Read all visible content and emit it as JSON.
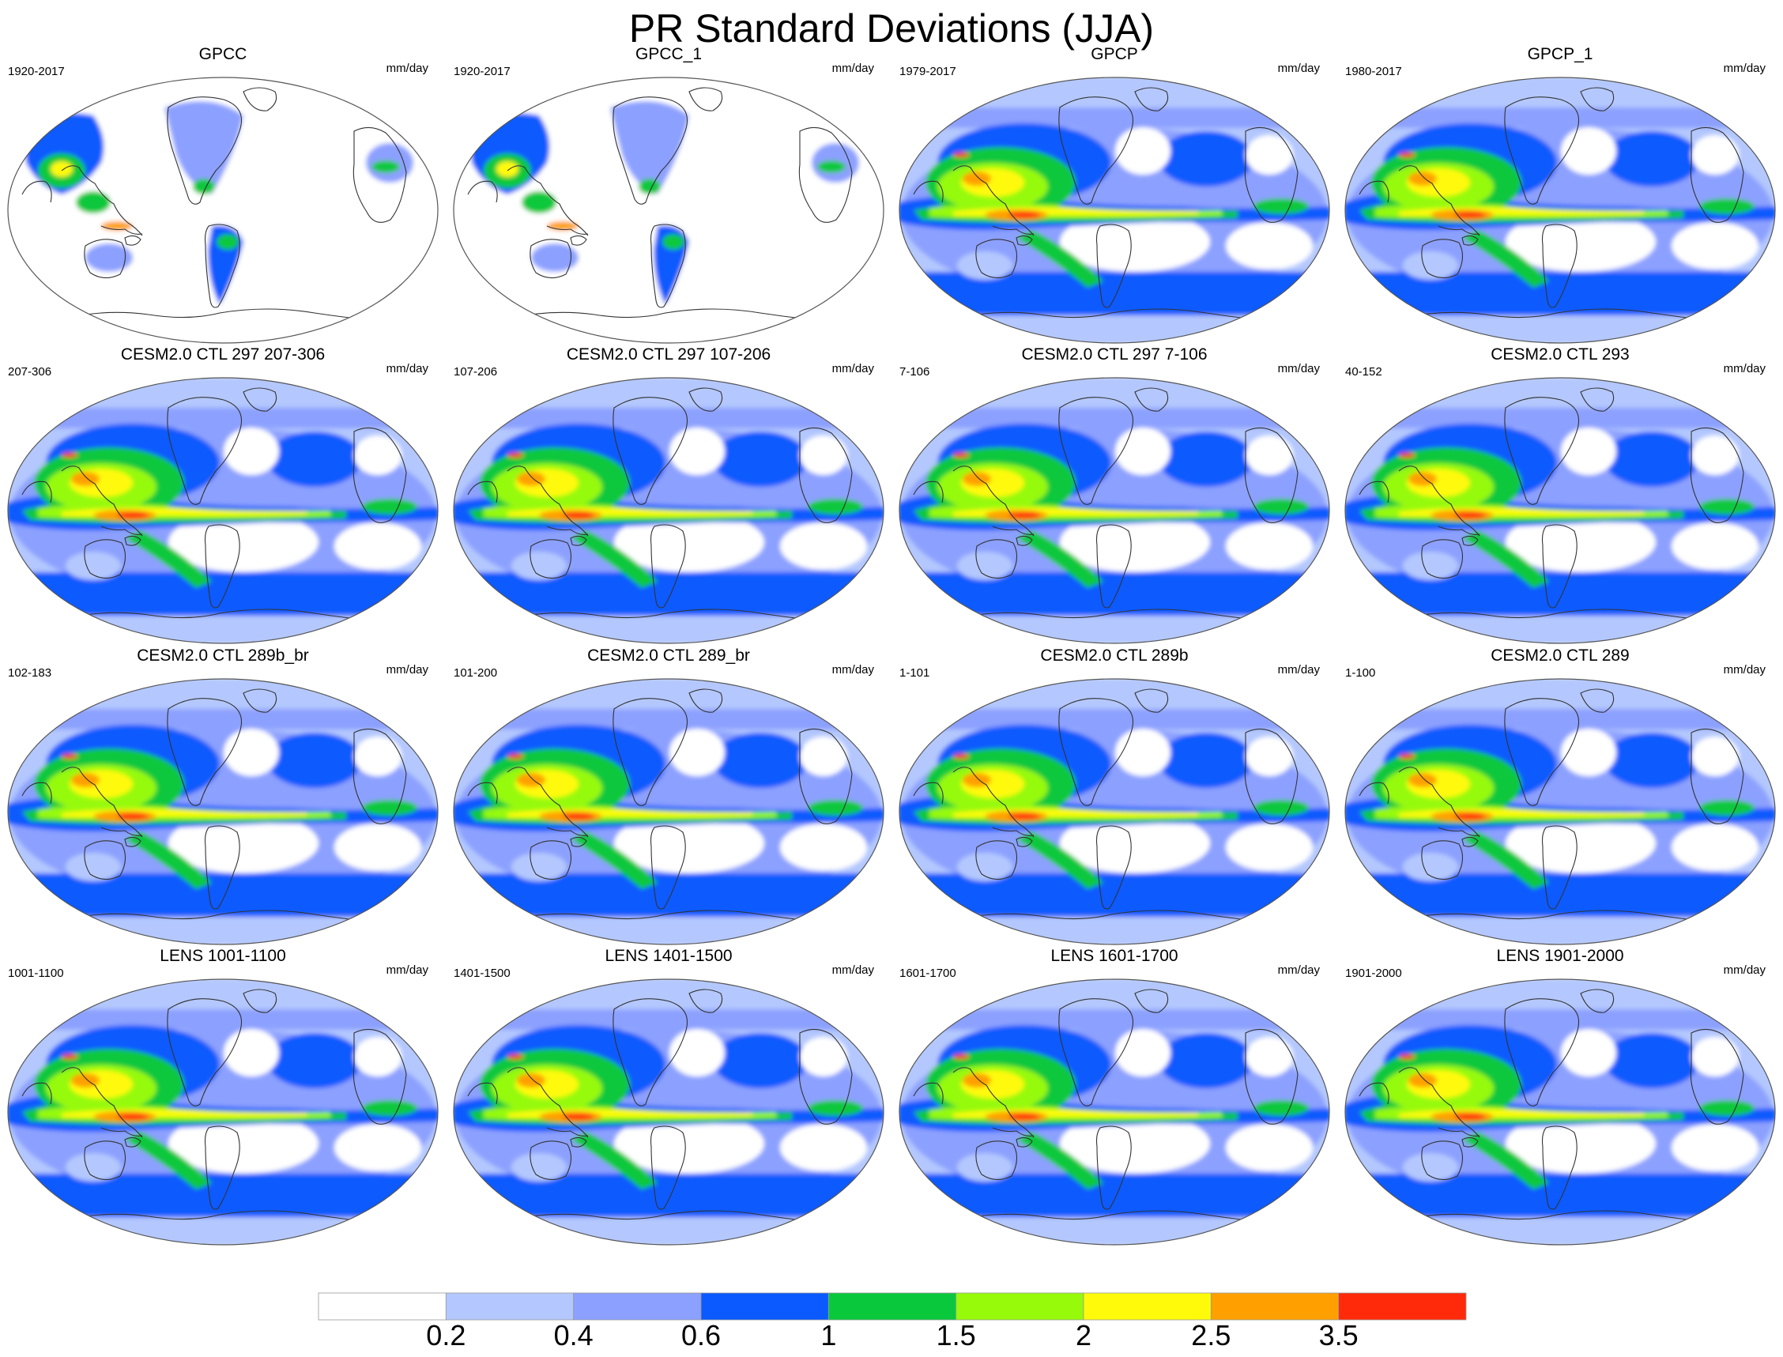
{
  "title": "PR Standard Deviations (JJA)",
  "units": "mm/day",
  "colorbar": {
    "labels": [
      "0.2",
      "0.4",
      "0.6",
      "1",
      "1.5",
      "2",
      "2.5",
      "3.5"
    ],
    "colors": [
      "#ffffff",
      "#b4c8ff",
      "#8ca0ff",
      "#0a5aff",
      "#0ac83c",
      "#96fa0a",
      "#fffa0a",
      "#ffa000",
      "#ff2a0a"
    ]
  },
  "panels": [
    {
      "title": "GPCC",
      "period": "1920-2017",
      "land_only": true
    },
    {
      "title": "GPCC_1",
      "period": "1920-2017",
      "land_only": true
    },
    {
      "title": "GPCP",
      "period": "1979-2017",
      "land_only": false
    },
    {
      "title": "GPCP_1",
      "period": "1980-2017",
      "land_only": false
    },
    {
      "title": "CESM2.0 CTL 297 207-306",
      "period": "207-306",
      "land_only": false
    },
    {
      "title": "CESM2.0 CTL 297 107-206",
      "period": "107-206",
      "land_only": false
    },
    {
      "title": "CESM2.0 CTL 297 7-106",
      "period": "7-106",
      "land_only": false
    },
    {
      "title": "CESM2.0 CTL 293",
      "period": "40-152",
      "land_only": false
    },
    {
      "title": "CESM2.0 CTL 289b_br",
      "period": "102-183",
      "land_only": false
    },
    {
      "title": "CESM2.0 CTL 289_br",
      "period": "101-200",
      "land_only": false
    },
    {
      "title": "CESM2.0 CTL 289b",
      "period": "1-101",
      "land_only": false
    },
    {
      "title": "CESM2.0 CTL 289",
      "period": "1-100",
      "land_only": false
    },
    {
      "title": "LENS 1001-1100",
      "period": "1001-1100",
      "land_only": false
    },
    {
      "title": "LENS 1401-1500",
      "period": "1401-1500",
      "land_only": false
    },
    {
      "title": "LENS 1601-1700",
      "period": "1601-1700",
      "land_only": false
    },
    {
      "title": "LENS 1901-2000",
      "period": "1901-2000",
      "land_only": false
    }
  ]
}
